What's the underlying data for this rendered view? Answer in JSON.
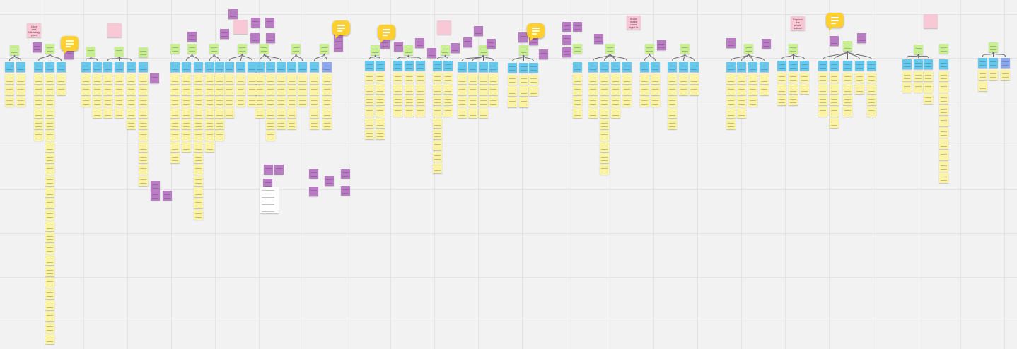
{
  "board": {
    "background": "#f2f2f2",
    "grid_color": "#e3e3e3",
    "note_colors": {
      "y": "#fdf4a3",
      "b": "#67c8ee",
      "g": "#c9ef93",
      "p": "#b97cc4",
      "k": "#f7c8d6",
      "l": "#8ba8f0",
      "w": "#ffffff"
    },
    "comment_color": "#ffd02f",
    "comment_icon": "comment-bubble-icon",
    "pink_notes": [
      {
        "text": "User and following plan"
      },
      {
        "text": ""
      },
      {
        "text": ""
      },
      {
        "text": ""
      },
      {
        "text": "It can make more right in"
      },
      {
        "text": "Explore the whole feature plan"
      },
      {
        "text": ""
      }
    ]
  }
}
